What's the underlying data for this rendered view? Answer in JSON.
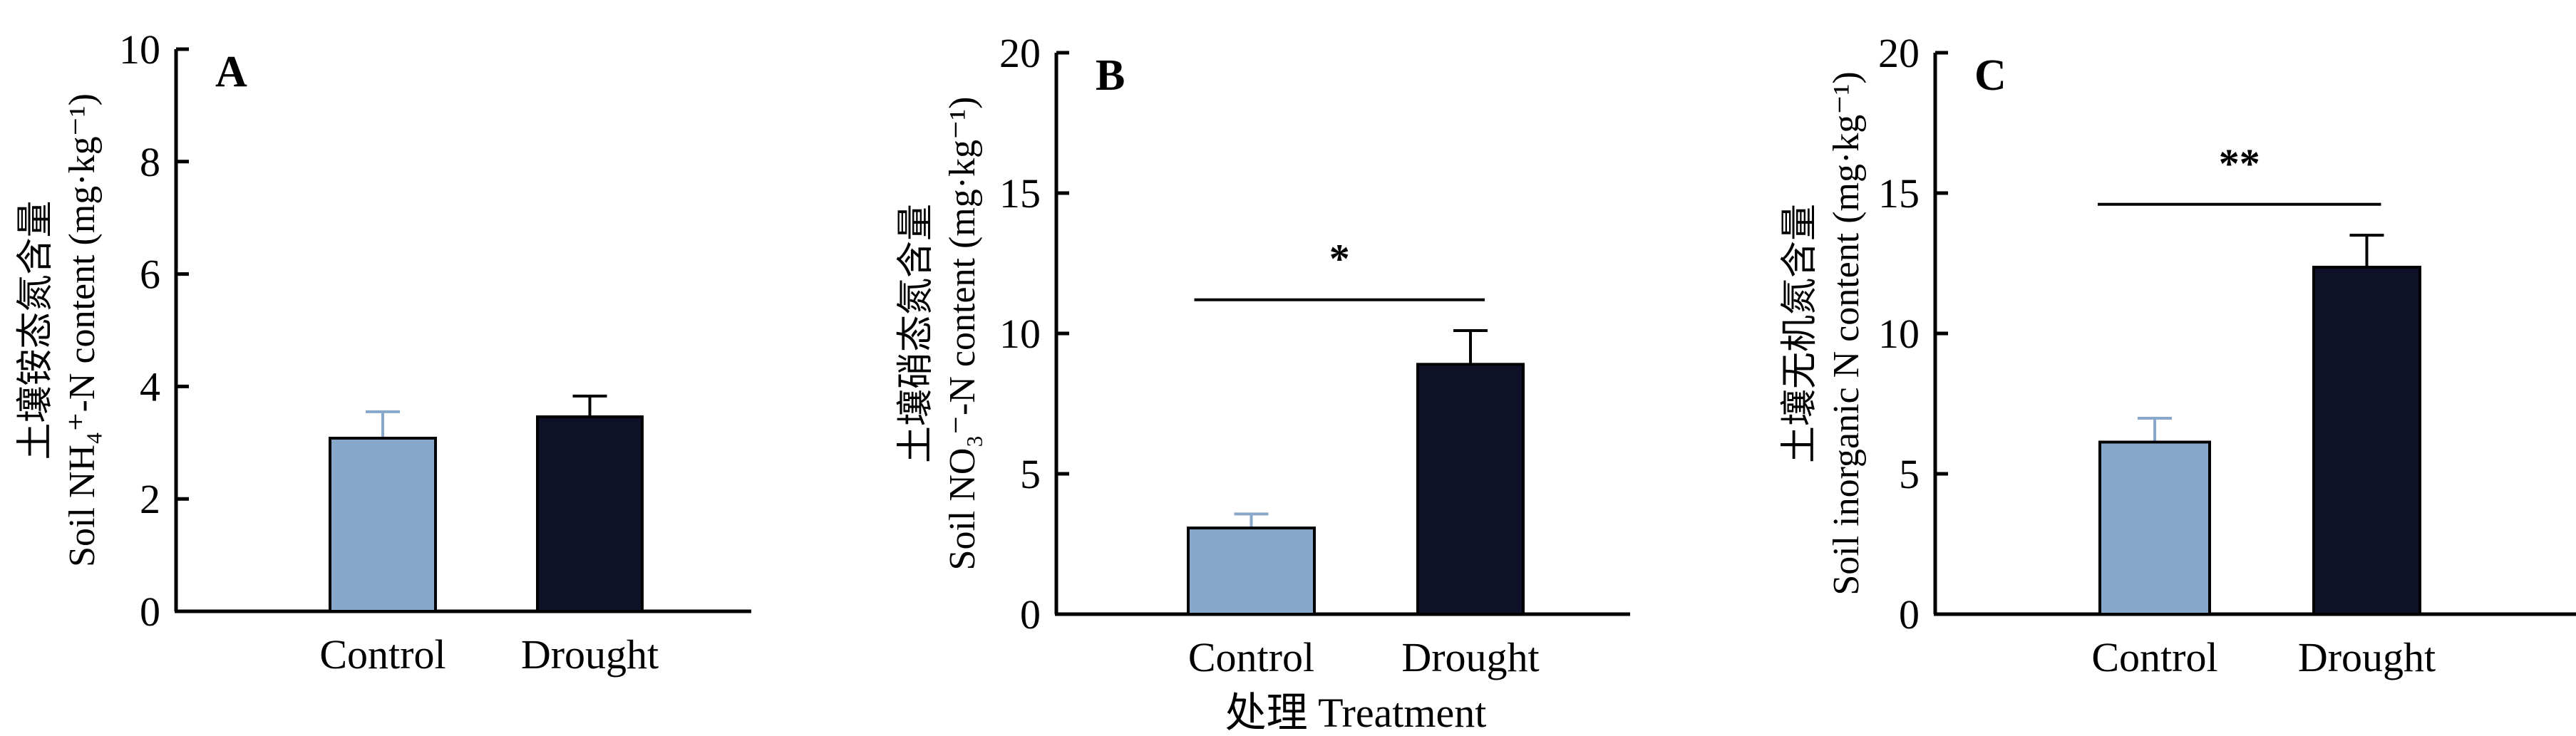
{
  "chart_data": [
    {
      "type": "bar",
      "panel": "A",
      "title": "",
      "ylabel_cn": "土壤铵态氮含量",
      "ylabel_en": "Soil NH₄⁺-N content (mg·kg⁻¹)",
      "xlabel": "",
      "categories": [
        "Control",
        "Drought"
      ],
      "values": [
        3.08,
        3.46
      ],
      "errors": [
        0.47,
        0.37
      ],
      "colors": [
        "#87a7cb",
        "#0e1128"
      ],
      "ylim": [
        0,
        10
      ],
      "yticks": [
        0,
        2,
        4,
        6,
        8,
        10
      ],
      "significance": null
    },
    {
      "type": "bar",
      "panel": "B",
      "title": "",
      "ylabel_cn": "土壤硝态氮含量",
      "ylabel_en": "Soil NO₃⁻-N content (mg·kg⁻¹)",
      "xlabel": "处理 Treatment",
      "categories": [
        "Control",
        "Drought"
      ],
      "values": [
        3.07,
        8.9
      ],
      "errors": [
        0.5,
        1.2
      ],
      "colors": [
        "#87a7cb",
        "#0e1128"
      ],
      "ylim": [
        0,
        20
      ],
      "yticks": [
        0,
        5,
        10,
        15,
        20
      ],
      "significance": {
        "label": "*",
        "y": 11.2
      }
    },
    {
      "type": "bar",
      "panel": "C",
      "title": "",
      "ylabel_cn": "土壤无机氮含量",
      "ylabel_en": "Soil inorganic N content (mg·kg⁻¹)",
      "xlabel": "",
      "categories": [
        "Control",
        "Drought"
      ],
      "values": [
        6.13,
        12.36
      ],
      "errors": [
        0.85,
        1.14
      ],
      "colors": [
        "#87a7cb",
        "#0e1128"
      ],
      "ylim": [
        0,
        20
      ],
      "yticks": [
        0,
        5,
        10,
        15,
        20
      ],
      "significance": {
        "label": "**",
        "y": 14.6
      }
    }
  ]
}
